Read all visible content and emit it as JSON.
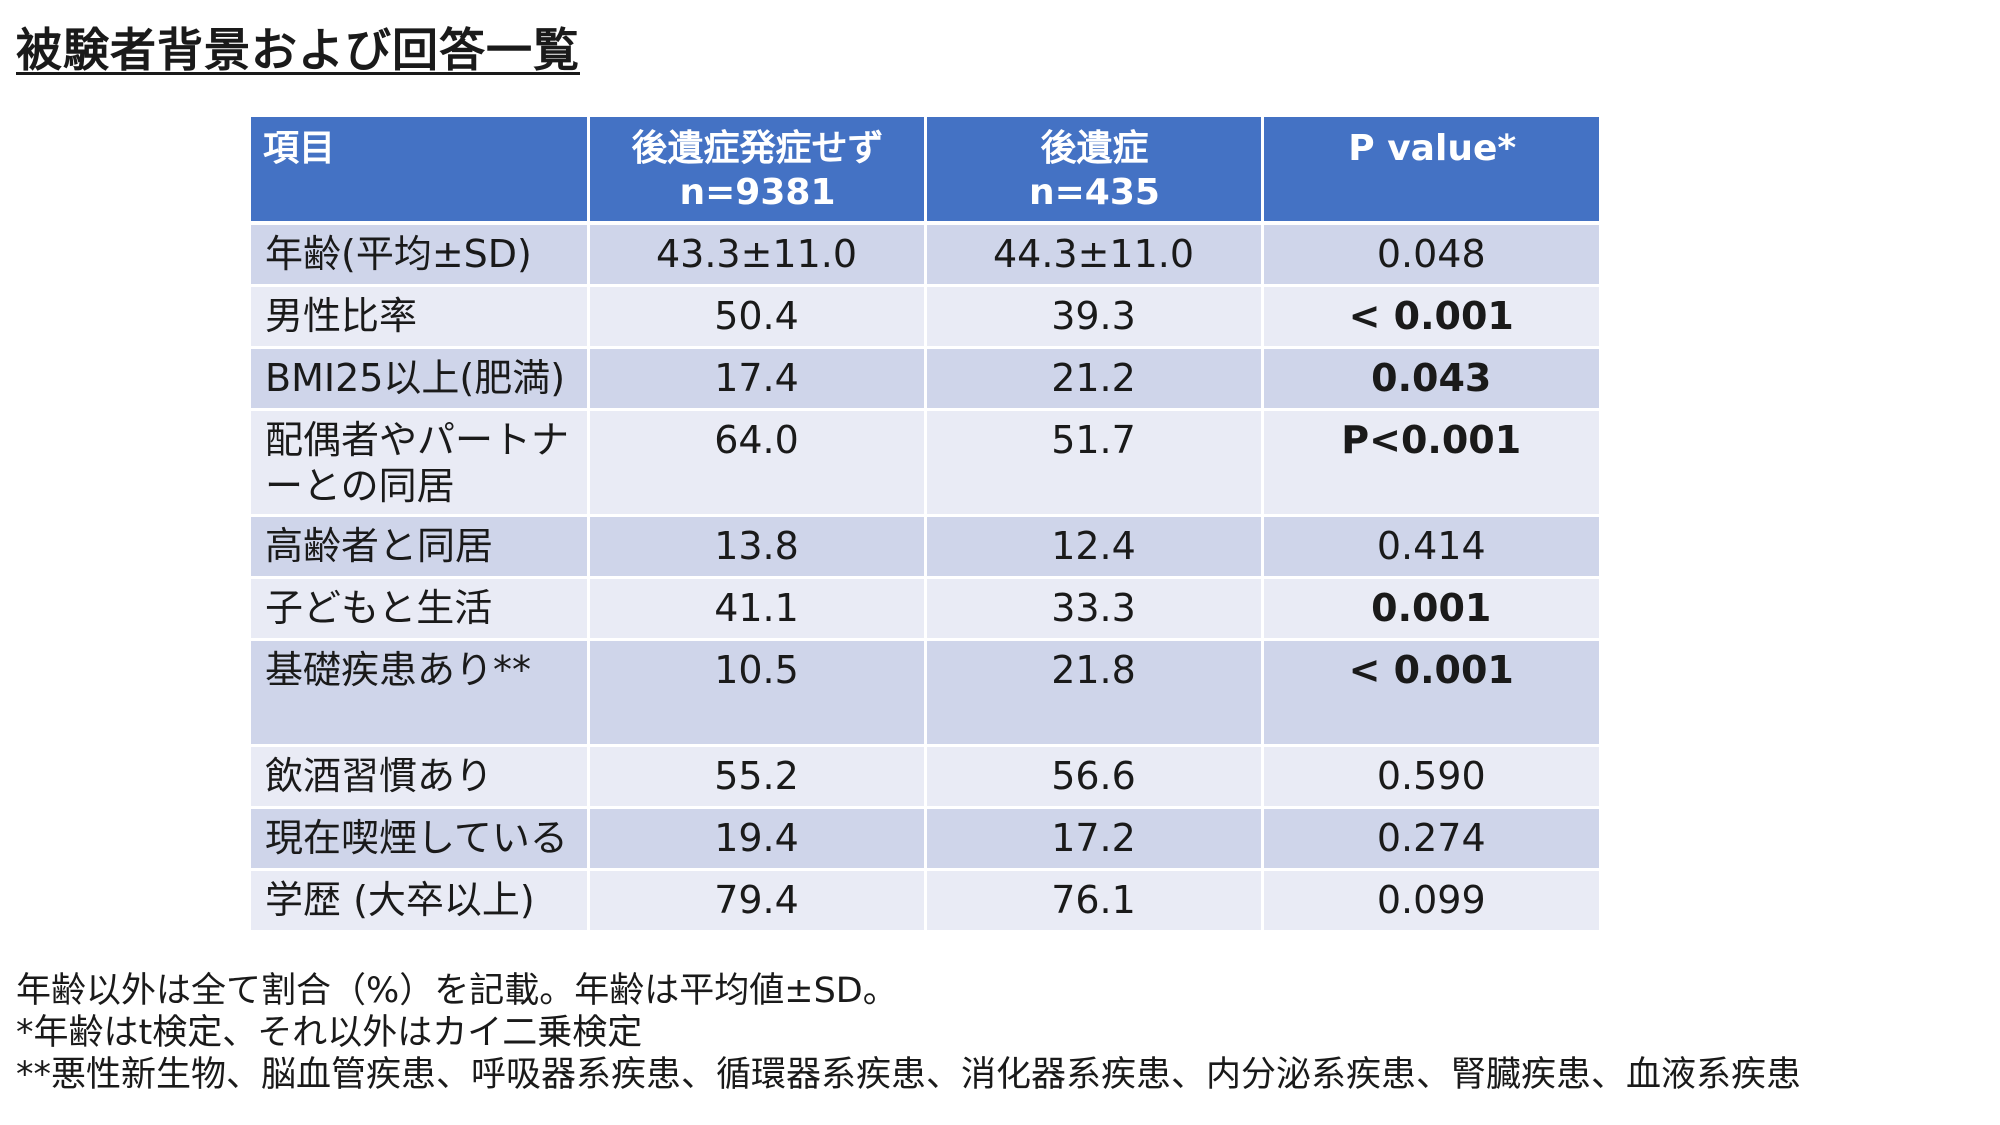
{
  "title": "被験者背景および回答一覧",
  "table": {
    "headers": [
      {
        "line1": "項目",
        "line2": ""
      },
      {
        "line1": "後遺症発症せず",
        "line2": "n=9381"
      },
      {
        "line1": "後遺症",
        "line2": "n=435"
      },
      {
        "line1": "P value*",
        "line2": ""
      }
    ],
    "rows": [
      {
        "item": "年齢(平均±SD)",
        "no_sequelae": "43.3±11.0",
        "sequelae": "44.3±11.0",
        "p": "0.048",
        "p_bold": false,
        "tall": false
      },
      {
        "item": "男性比率",
        "no_sequelae": "50.4",
        "sequelae": "39.3",
        "p": "< 0.001",
        "p_bold": true,
        "tall": false
      },
      {
        "item": "BMI25以上(肥満)",
        "no_sequelae": "17.4",
        "sequelae": "21.2",
        "p": "0.043",
        "p_bold": true,
        "tall": false
      },
      {
        "item": "配偶者やパートナーとの同居",
        "no_sequelae": "64.0",
        "sequelae": "51.7",
        "p": "P<0.001",
        "p_bold": true,
        "tall": true
      },
      {
        "item": "高齢者と同居",
        "no_sequelae": "13.8",
        "sequelae": "12.4",
        "p": "0.414",
        "p_bold": false,
        "tall": false
      },
      {
        "item": "子どもと生活",
        "no_sequelae": "41.1",
        "sequelae": "33.3",
        "p": "0.001",
        "p_bold": true,
        "tall": false
      },
      {
        "item": "基礎疾患あり**",
        "no_sequelae": "10.5",
        "sequelae": "21.8",
        "p": "< 0.001",
        "p_bold": true,
        "tall": true
      },
      {
        "item": "飲酒習慣あり",
        "no_sequelae": "55.2",
        "sequelae": "56.6",
        "p": "0.590",
        "p_bold": false,
        "tall": false
      },
      {
        "item": "現在喫煙している",
        "no_sequelae": "19.4",
        "sequelae": "17.2",
        "p": "0.274",
        "p_bold": false,
        "tall": false
      },
      {
        "item": "学歴 (大卒以上)",
        "no_sequelae": "79.4",
        "sequelae": "76.1",
        "p": "0.099",
        "p_bold": false,
        "tall": false
      }
    ]
  },
  "footnotes": [
    "年齢以外は全て割合（%）を記載。年齢は平均値±SD。",
    "*年齢はt検定、それ以外はカイ二乗検定",
    "**悪性新生物、脳血管疾患、呼吸器系疾患、循環器系疾患、消化器系疾患、内分泌系疾患、腎臓疾患、血液系疾患"
  ],
  "colors": {
    "header_bg": "#4472c4",
    "row_odd_bg": "#cfd5ea",
    "row_even_bg": "#e9ebf5"
  }
}
